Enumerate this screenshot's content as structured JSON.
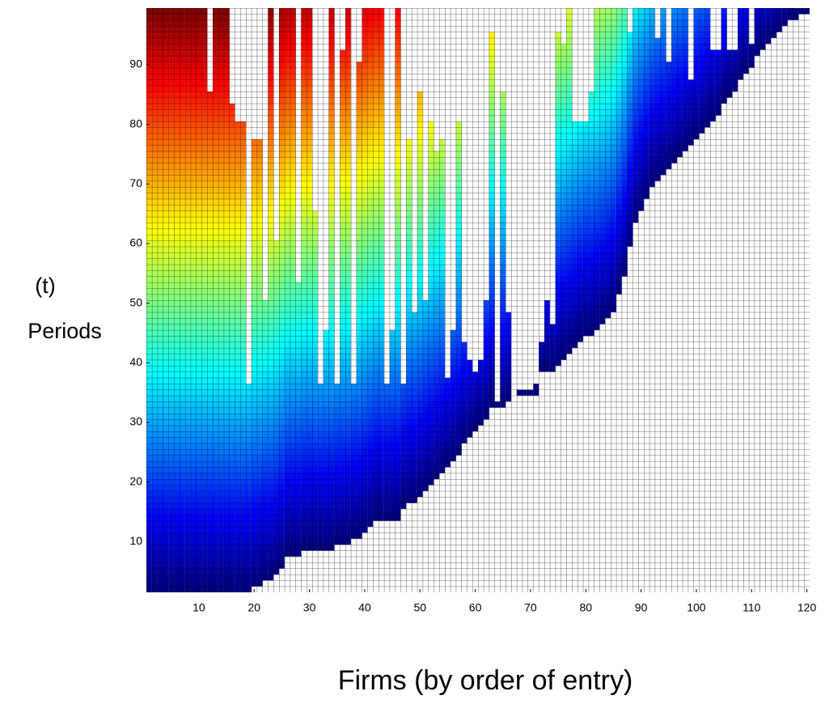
{
  "chart_data": {
    "type": "heatmap",
    "x_label": "Firms (by order of entry)",
    "y_label": [
      "(t)",
      "Periods"
    ],
    "colormap": "jet",
    "x": [
      1,
      2,
      3,
      4,
      5,
      6,
      7,
      8,
      9,
      10,
      11,
      12,
      13,
      14,
      15,
      16,
      17,
      18,
      19,
      20,
      21,
      22,
      23,
      24,
      25,
      26,
      27,
      28,
      29,
      30,
      31,
      32,
      33,
      34,
      35,
      36,
      37,
      38,
      39,
      40,
      41,
      42,
      43,
      44,
      45,
      46,
      47,
      48,
      49,
      50,
      51,
      52,
      53,
      54,
      55,
      56,
      57,
      58,
      59,
      60,
      61,
      62,
      63,
      64,
      65,
      66,
      67,
      68,
      69,
      70,
      71,
      72,
      73,
      74,
      75,
      76,
      77,
      78,
      79,
      80,
      81,
      82,
      83,
      84,
      85,
      86,
      87,
      88,
      89,
      90,
      91,
      92,
      93,
      94,
      95,
      96,
      97,
      98,
      99,
      100,
      101,
      102,
      103,
      104,
      105,
      106,
      107,
      108,
      109,
      110,
      111,
      112,
      113,
      114,
      115,
      116,
      117,
      118,
      119,
      120
    ],
    "entry": [
      2,
      2,
      2,
      2,
      2,
      2,
      2,
      2,
      2,
      2,
      2,
      2,
      2,
      2,
      2,
      2,
      2,
      2,
      2,
      3,
      3,
      4,
      4,
      5,
      6,
      8,
      8,
      8,
      9,
      9,
      9,
      9,
      9,
      9,
      10,
      10,
      10,
      11,
      11,
      12,
      13,
      14,
      14,
      14,
      14,
      14,
      16,
      17,
      17,
      18,
      19,
      20,
      21,
      22,
      23,
      24,
      25,
      27,
      28,
      29,
      30,
      31,
      33,
      33,
      33,
      34,
      34,
      35,
      35,
      35,
      35,
      39,
      39,
      39,
      40,
      41,
      42,
      43,
      44,
      45,
      45,
      46,
      47,
      48,
      49,
      52,
      55,
      60,
      64,
      66,
      68,
      70,
      71,
      72,
      73,
      74,
      75,
      76,
      77,
      78,
      79,
      80,
      81,
      82,
      84,
      85,
      86,
      88,
      89,
      90,
      92,
      93,
      94,
      95,
      96,
      97,
      98,
      98,
      99,
      99
    ],
    "exit": [
      99,
      99,
      99,
      99,
      99,
      99,
      99,
      99,
      99,
      99,
      99,
      85,
      99,
      99,
      99,
      83,
      80,
      80,
      36,
      77,
      77,
      50,
      99,
      60,
      99,
      99,
      99,
      53,
      99,
      99,
      65,
      36,
      45,
      99,
      36,
      92,
      99,
      36,
      90,
      99,
      99,
      99,
      99,
      36,
      45,
      99,
      36,
      77,
      48,
      85,
      50,
      80,
      75,
      77,
      37,
      45,
      80,
      43,
      40,
      38,
      40,
      50,
      95,
      33,
      85,
      48,
      33,
      35,
      35,
      35,
      36,
      43,
      50,
      46,
      95,
      93,
      99,
      80,
      80,
      80,
      85,
      99,
      99,
      99,
      99,
      99,
      99,
      95,
      99,
      99,
      99,
      99,
      94,
      99,
      90,
      99,
      99,
      99,
      87,
      99,
      99,
      99,
      92,
      92,
      99,
      92,
      92,
      99,
      99,
      93,
      99,
      99,
      99,
      99,
      99,
      99,
      99,
      99,
      99,
      99
    ],
    "xlim": [
      0.5,
      120.5
    ],
    "ylim": [
      1.5,
      99.5
    ],
    "xticks": [
      10,
      20,
      30,
      40,
      50,
      60,
      70,
      80,
      90,
      100,
      110,
      120
    ],
    "yticks": [
      10,
      20,
      30,
      40,
      50,
      60,
      70,
      80,
      90
    ]
  }
}
